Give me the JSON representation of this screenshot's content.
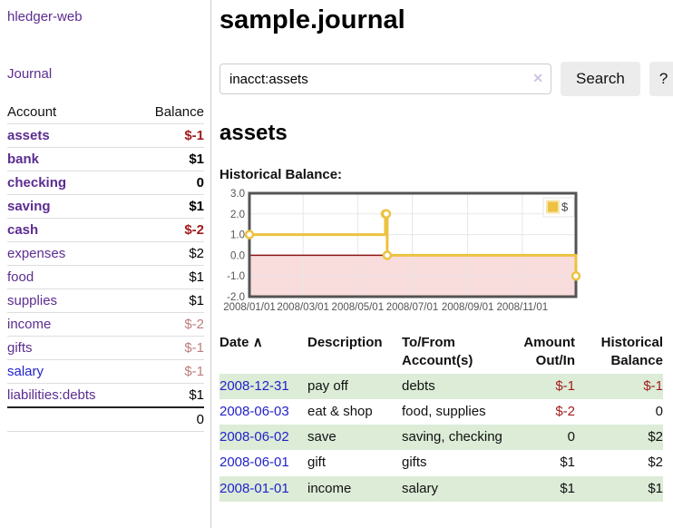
{
  "app": {
    "brand": "hledger-web"
  },
  "sidebar": {
    "journal_link": "Journal",
    "headers": {
      "account": "Account",
      "balance": "Balance"
    },
    "accounts": [
      {
        "name": "assets",
        "level": 0,
        "bold": true,
        "balance": "$-1"
      },
      {
        "name": "bank",
        "level": 1,
        "bold": true,
        "balance": "$1"
      },
      {
        "name": "checking",
        "level": 2,
        "bold": true,
        "balance": "0"
      },
      {
        "name": "saving",
        "level": 2,
        "bold": true,
        "balance": "$1"
      },
      {
        "name": "cash",
        "level": 1,
        "bold": true,
        "balance": "$-2"
      },
      {
        "name": "expenses",
        "level": 0,
        "bold": false,
        "balance": "$2"
      },
      {
        "name": "food",
        "level": 1,
        "bold": false,
        "balance": "$1"
      },
      {
        "name": "supplies",
        "level": 1,
        "bold": false,
        "balance": "$1"
      },
      {
        "name": "income",
        "level": 0,
        "bold": false,
        "balance": "$-2"
      },
      {
        "name": "gifts",
        "level": 1,
        "bold": false,
        "balance": "$-1"
      },
      {
        "name": "salary",
        "level": 1,
        "bold": false,
        "balance": "$-1",
        "unvisited": true
      },
      {
        "name": "liabilities:debts",
        "level": 0,
        "bold": false,
        "balance": "$1"
      }
    ],
    "total": "0"
  },
  "header": {
    "title": "sample.journal"
  },
  "search": {
    "value": "inacct:assets",
    "clear_icon": "✕",
    "button_label": "Search",
    "help_label": "?"
  },
  "account_page": {
    "heading": "assets",
    "chart_label": "Historical Balance:"
  },
  "chart_data": {
    "type": "line",
    "step": true,
    "title": "Historical Balance:",
    "x_range": [
      "2008-01-01",
      "2008-12-31"
    ],
    "ylim": [
      -2,
      3
    ],
    "y_ticks": [
      3.0,
      2.0,
      1.0,
      0.0,
      -1.0,
      -2.0
    ],
    "x_ticks": [
      "2008/01/01",
      "2008/03/01",
      "2008/05/01",
      "2008/07/01",
      "2008/09/01",
      "2008/11/01"
    ],
    "series": [
      {
        "name": "$",
        "color": "#edc240",
        "points": [
          [
            "2008-01-01",
            1
          ],
          [
            "2008-06-01",
            2
          ],
          [
            "2008-06-02",
            2
          ],
          [
            "2008-06-03",
            0
          ],
          [
            "2008-12-31",
            -1
          ]
        ]
      }
    ],
    "legend_position": "top-right",
    "grid": true,
    "negative_region_fill": "#f9dcdc",
    "zero_line_color": "#8b1515"
  },
  "transactions": {
    "headers": {
      "date": "Date",
      "sort_icon": "∧",
      "description": "Description",
      "tofrom": "To/From Account(s)",
      "amount": "Amount Out/In",
      "balance": "Historical Balance"
    },
    "rows": [
      {
        "date": "2008-12-31",
        "description": "pay off",
        "accounts": "debts",
        "amount": "$-1",
        "balance": "$-1"
      },
      {
        "date": "2008-06-03",
        "description": "eat & shop",
        "accounts": "food, supplies",
        "amount": "$-2",
        "balance": "0"
      },
      {
        "date": "2008-06-02",
        "description": "save",
        "accounts": "saving, checking",
        "amount": "0",
        "balance": "$2"
      },
      {
        "date": "2008-06-01",
        "description": "gift",
        "accounts": "gifts",
        "amount": "$1",
        "balance": "$2"
      },
      {
        "date": "2008-01-01",
        "description": "income",
        "accounts": "salary",
        "amount": "$1",
        "balance": "$1"
      }
    ]
  },
  "colors": {
    "link_purple": "#5c2d91",
    "link_blue": "#2222cc",
    "negative_strong": "#a21c1c",
    "negative_soft": "#bd7d7d",
    "row_green": "#dcecd7",
    "chart_line": "#edc240"
  }
}
